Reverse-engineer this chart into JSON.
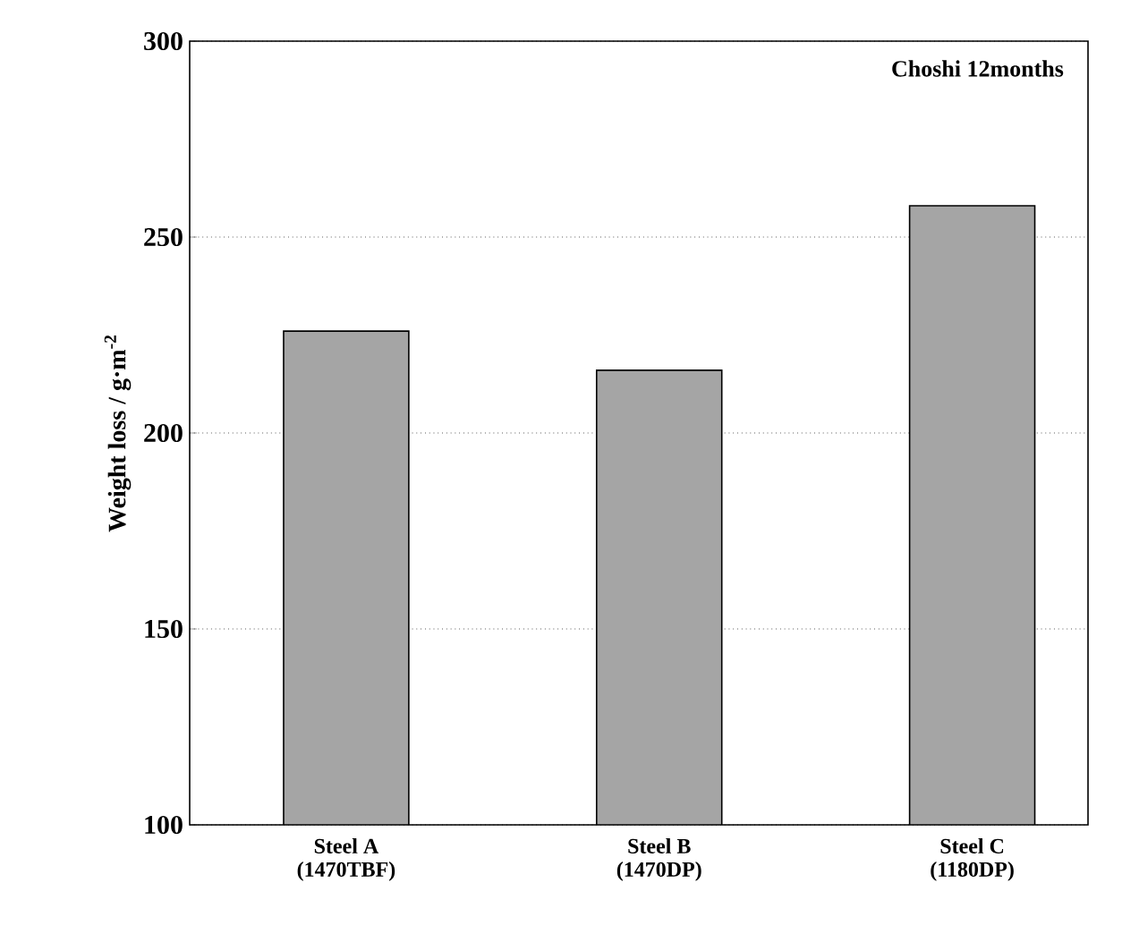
{
  "chart_data": {
    "type": "bar",
    "title": "Choshi 12months",
    "ylabel": "Weight loss / g·m$^{-2}$",
    "categories": [
      "Steel A\n(1470TBF)",
      "Steel B\n(1470DP)",
      "Steel C\n(1180DP)"
    ],
    "values": [
      226,
      216,
      258
    ],
    "color": "#a5a5a5",
    "ylim": [
      100,
      300
    ],
    "yticks": [
      100,
      150,
      200,
      250,
      300
    ],
    "grid": "y"
  }
}
